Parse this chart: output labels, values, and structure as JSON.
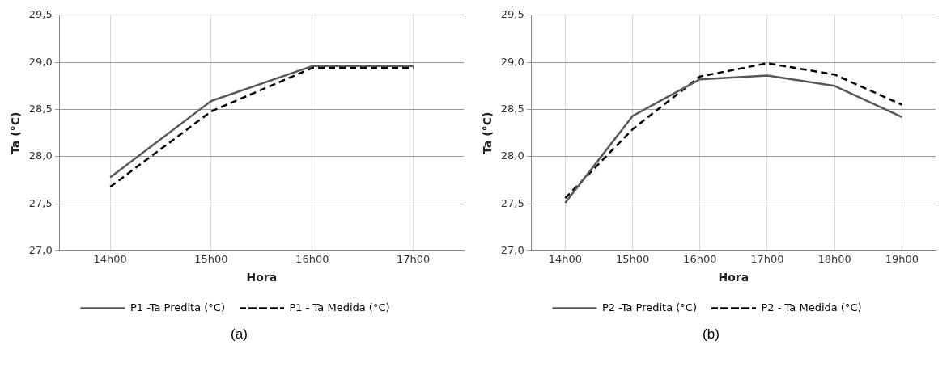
{
  "chart_data": [
    {
      "type": "line",
      "categories": [
        "14h00",
        "15h00",
        "16h00",
        "17h00"
      ],
      "xlabel": "Hora",
      "ylabel": "Ta (°C)",
      "ylim": [
        27.0,
        29.5
      ],
      "yticks": [
        {
          "value": 27.0,
          "label": "27,0"
        },
        {
          "value": 27.5,
          "label": "27,5"
        },
        {
          "value": 28.0,
          "label": "28,0"
        },
        {
          "value": 28.5,
          "label": "28,5"
        },
        {
          "value": 29.0,
          "label": "29,0"
        },
        {
          "value": 29.5,
          "label": "29,5"
        }
      ],
      "grid": true,
      "legend": "bottom",
      "marker": "none",
      "annotations": [
        "(a)"
      ],
      "series": [
        {
          "name": "P1 -Ta Predita (°C)",
          "color": "#595959",
          "line_style": "solid",
          "values": [
            27.78,
            28.59,
            28.96,
            28.96
          ]
        },
        {
          "name": "P1 - Ta Medida (°C)",
          "color": "#000000",
          "line_style": "dashed",
          "values": [
            27.68,
            28.48,
            28.94,
            28.94
          ]
        }
      ]
    },
    {
      "type": "line",
      "categories": [
        "14h00",
        "15h00",
        "16h00",
        "17h00",
        "18h00",
        "19h00"
      ],
      "xlabel": "Hora",
      "ylabel": "Ta (°C)",
      "ylim": [
        27.0,
        29.5
      ],
      "yticks": [
        {
          "value": 27.0,
          "label": "27,0"
        },
        {
          "value": 27.5,
          "label": "27,5"
        },
        {
          "value": 28.0,
          "label": "28,0"
        },
        {
          "value": 28.5,
          "label": "28,5"
        },
        {
          "value": 29.0,
          "label": "29,0"
        },
        {
          "value": 29.5,
          "label": "29,5"
        }
      ],
      "grid": true,
      "legend": "bottom",
      "marker": "none",
      "annotations": [
        "(b)"
      ],
      "series": [
        {
          "name": "P2 -Ta Predita (°C)",
          "color": "#595959",
          "line_style": "solid",
          "values": [
            27.51,
            28.43,
            28.82,
            28.86,
            28.75,
            28.42
          ]
        },
        {
          "name": "P2 - Ta Medida (°C)",
          "color": "#000000",
          "line_style": "dashed",
          "values": [
            27.56,
            28.29,
            28.85,
            28.99,
            28.87,
            28.55
          ]
        }
      ]
    }
  ]
}
